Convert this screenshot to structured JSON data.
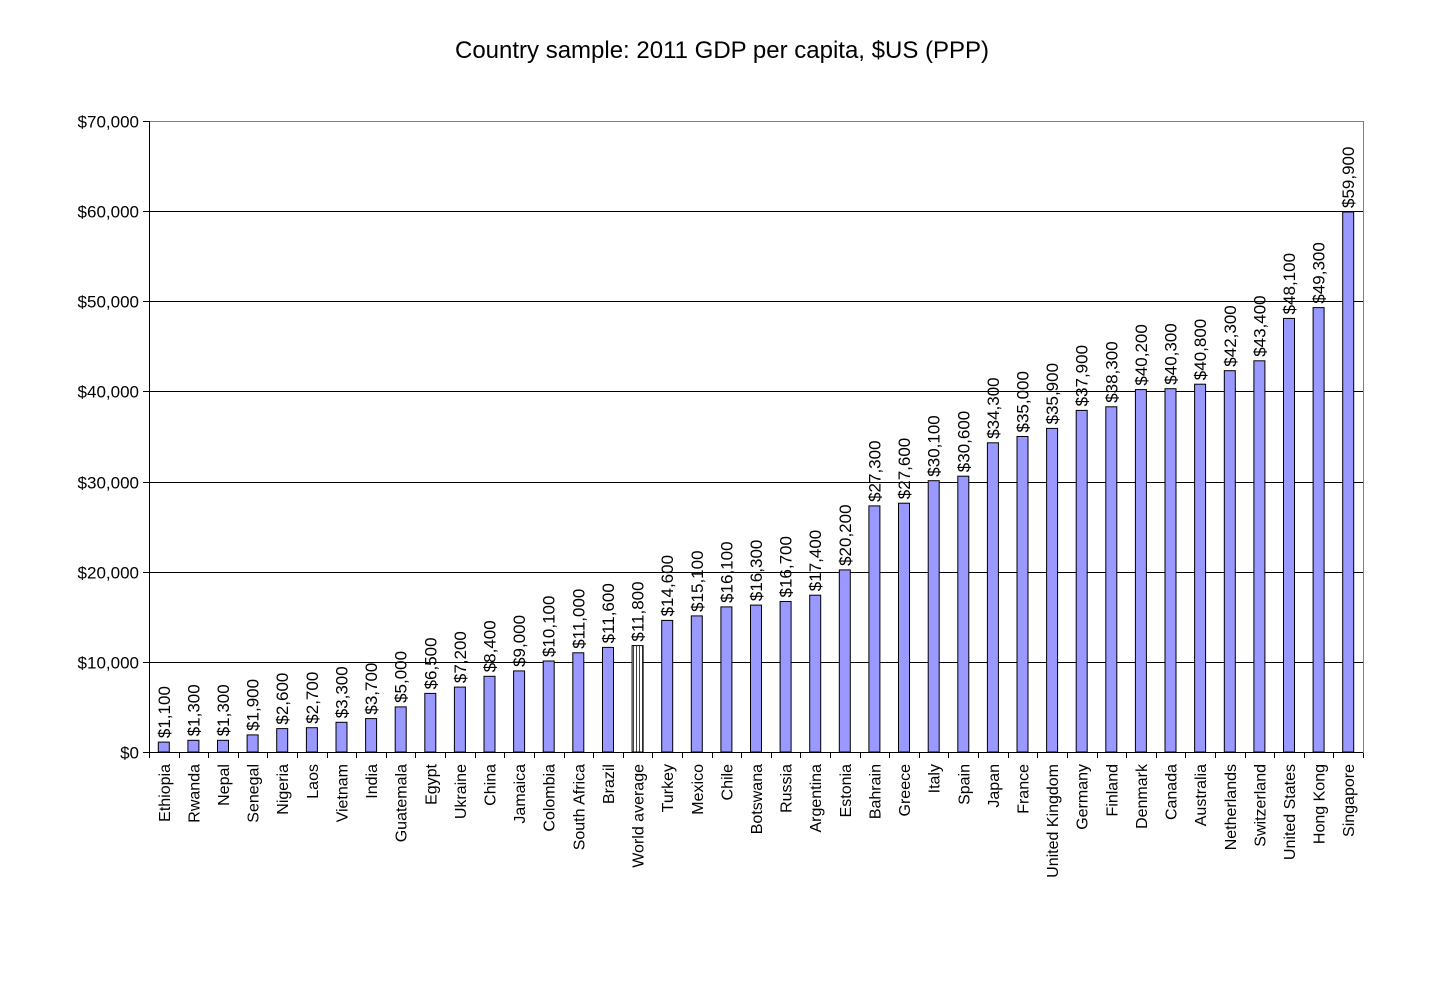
{
  "chart_data": {
    "type": "bar",
    "title": "Country sample: 2011 GDP per capita, $US (PPP)",
    "xlabel": "",
    "ylabel": "",
    "ylim": [
      0,
      70000
    ],
    "yticks": [
      0,
      10000,
      20000,
      30000,
      40000,
      50000,
      60000,
      70000
    ],
    "ytick_labels": [
      "$0",
      "$10,000",
      "$20,000",
      "$30,000",
      "$40,000",
      "$50,000",
      "$60,000",
      "$70,000"
    ],
    "grid": true,
    "legend": "none",
    "bar_color": "#9999ff",
    "highlight_category": "World average",
    "highlight_style": "vertical-hatch",
    "categories": [
      "Ethiopia",
      "Rwanda",
      "Nepal",
      "Senegal",
      "Nigeria",
      "Laos",
      "Vietnam",
      "India",
      "Guatemala",
      "Egypt",
      "Ukraine",
      "China",
      "Jamaica",
      "Colombia",
      "South Africa",
      "Brazil",
      "World average",
      "Turkey",
      "Mexico",
      "Chile",
      "Botswana",
      "Russia",
      "Argentina",
      "Estonia",
      "Bahrain",
      "Greece",
      "Italy",
      "Spain",
      "Japan",
      "France",
      "United Kingdom",
      "Germany",
      "Finland",
      "Denmark",
      "Canada",
      "Australia",
      "Netherlands",
      "Switzerland",
      "United States",
      "Hong Kong",
      "Singapore"
    ],
    "values": [
      1100,
      1300,
      1300,
      1900,
      2600,
      2700,
      3300,
      3700,
      5000,
      6500,
      7200,
      8400,
      9000,
      10100,
      11000,
      11600,
      11800,
      14600,
      15100,
      16100,
      16300,
      16700,
      17400,
      20200,
      27300,
      27600,
      30100,
      30600,
      34300,
      35000,
      35900,
      37900,
      38300,
      40200,
      40300,
      40800,
      42300,
      43400,
      48100,
      49300,
      59900
    ],
    "data_labels": [
      "$1,100",
      "$1,300",
      "$1,300",
      "$1,900",
      "$2,600",
      "$2,700",
      "$3,300",
      "$3,700",
      "$5,000",
      "$6,500",
      "$7,200",
      "$8,400",
      "$9,000",
      "$10,100",
      "$11,000",
      "$11,600",
      "$11,800",
      "$14,600",
      "$15,100",
      "$16,100",
      "$16,300",
      "$16,700",
      "$17,400",
      "$20,200",
      "$27,300",
      "$27,600",
      "$30,100",
      "$30,600",
      "$34,300",
      "$35,000",
      "$35,900",
      "$37,900",
      "$38,300",
      "$40,200",
      "$40,300",
      "$40,800",
      "$42,300",
      "$43,400",
      "$48,100",
      "$49,300",
      "$59,900"
    ]
  }
}
